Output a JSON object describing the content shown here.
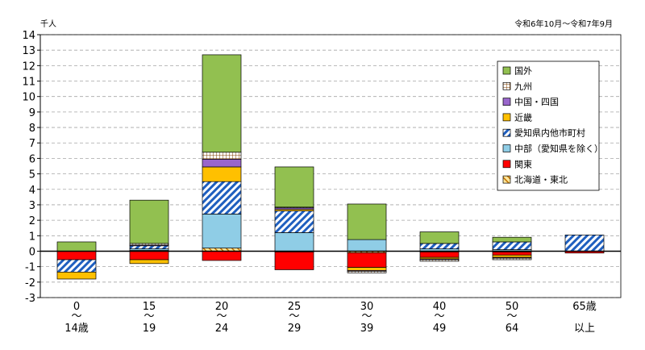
{
  "chart_data": {
    "type": "bar",
    "stacked": true,
    "unit_label": "千人",
    "period_label": "令和6年10月～令和7年9月",
    "ylim": [
      -3,
      14
    ],
    "yticks": [
      14,
      13,
      12,
      11,
      10,
      9,
      8,
      7,
      6,
      5,
      4,
      3,
      2,
      1,
      0,
      -1,
      -2,
      -3
    ],
    "grid": true,
    "legend_position": "top-right",
    "categories": [
      {
        "top": "0",
        "mid": "～",
        "bottom": "14歳"
      },
      {
        "top": "15",
        "mid": "～",
        "bottom": "19"
      },
      {
        "top": "20",
        "mid": "～",
        "bottom": "24"
      },
      {
        "top": "25",
        "mid": "～",
        "bottom": "29"
      },
      {
        "top": "30",
        "mid": "～",
        "bottom": "39"
      },
      {
        "top": "40",
        "mid": "～",
        "bottom": "49"
      },
      {
        "top": "50",
        "mid": "～",
        "bottom": "64"
      },
      {
        "top": "65歳",
        "mid": "",
        "bottom": "以上"
      }
    ],
    "series": [
      {
        "name": "北海道・東北",
        "color": "#ffd966",
        "pattern": "hatch-orange",
        "values": [
          0,
          0.05,
          0.2,
          -0.05,
          -0.1,
          -0.05,
          -0.05,
          0
        ]
      },
      {
        "name": "関東",
        "color": "#ff0000",
        "pattern": "solid",
        "values": [
          -0.55,
          -0.55,
          -0.6,
          -1.15,
          -0.95,
          -0.35,
          -0.2,
          -0.12
        ]
      },
      {
        "name": "中部（愛知県を除く）",
        "color": "#8fcde6",
        "pattern": "solid",
        "values": [
          0,
          0.1,
          2.2,
          1.2,
          0.75,
          0.15,
          0.1,
          0
        ]
      },
      {
        "name": "愛知県内他市町村",
        "color": "#8fcde6",
        "pattern": "hatch-blue",
        "values": [
          -0.8,
          0.2,
          2.1,
          1.4,
          0,
          0.35,
          0.5,
          1.05
        ]
      },
      {
        "name": "近畿",
        "color": "#ffc000",
        "pattern": "solid",
        "values": [
          -0.45,
          -0.25,
          0.95,
          0.1,
          -0.2,
          -0.1,
          -0.15,
          0
        ]
      },
      {
        "name": "中国・四国",
        "color": "#9966cc",
        "pattern": "solid",
        "values": [
          0,
          0.05,
          0.5,
          0.1,
          -0.05,
          -0.05,
          -0.05,
          0
        ]
      },
      {
        "name": "九州",
        "color": "#ffffff",
        "pattern": "grid",
        "values": [
          0,
          0.1,
          0.45,
          0.05,
          -0.1,
          -0.1,
          -0.1,
          0
        ]
      },
      {
        "name": "国外",
        "color": "#92c050",
        "pattern": "solid",
        "values": [
          0.6,
          2.8,
          6.3,
          2.6,
          2.3,
          0.75,
          0.3,
          0
        ]
      }
    ],
    "legend_order": [
      "国外",
      "九州",
      "中国・四国",
      "近畿",
      "愛知県内他市町村",
      "中部（愛知県を除く）",
      "関東",
      "北海道・東北"
    ]
  }
}
